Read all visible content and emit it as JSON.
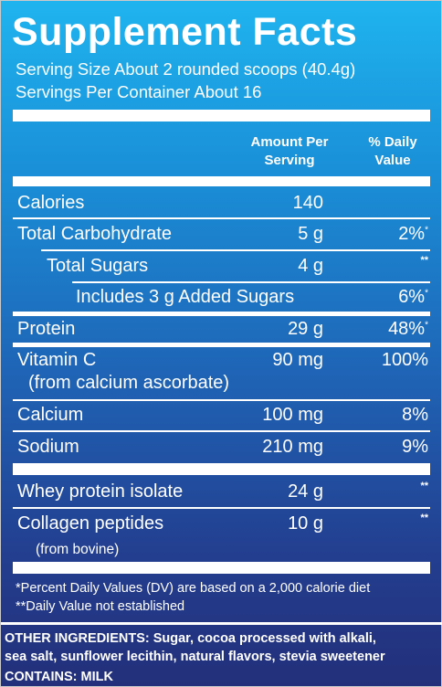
{
  "title": "Supplement Facts",
  "serving_size": "Serving Size About 2 rounded scoops (40.4g)",
  "servings_per_container": "Servings Per Container About 16",
  "header": {
    "amount_line1": "Amount Per",
    "amount_line2": "Serving",
    "dv_line1": "% Daily",
    "dv_line2": "Value"
  },
  "rows": [
    {
      "label": "Calories",
      "amount": "140",
      "dv": ""
    },
    {
      "label": "Total Carbohydrate",
      "amount": "5 g",
      "dv": "2%",
      "dv_mark": "*"
    },
    {
      "label": "Total Sugars",
      "amount": "4 g",
      "dv_mark": "**"
    },
    {
      "label": "Includes 3 g Added Sugars",
      "amount": "",
      "dv": "6%",
      "dv_mark": "*"
    },
    {
      "label": "Protein",
      "amount": "29 g",
      "dv": "48%",
      "dv_mark": "*"
    },
    {
      "label": "Vitamin C",
      "sublabel": "(from calcium ascorbate)",
      "amount": "90 mg",
      "dv": "100%"
    },
    {
      "label": "Calcium",
      "amount": "100 mg",
      "dv": "8%"
    },
    {
      "label": "Sodium",
      "amount": "210 mg",
      "dv": "9%"
    },
    {
      "label": "Whey protein isolate",
      "amount": "24 g",
      "dv_mark": "**"
    },
    {
      "label": "Collagen peptides",
      "sublabel": "(from bovine)",
      "amount": "10 g",
      "dv_mark": "**"
    }
  ],
  "footnotes": {
    "line1": "*Percent Daily Values (DV) are based on a 2,000 calorie diet",
    "line2": "**Daily Value not established"
  },
  "other_ingredients": {
    "line1": "OTHER INGREDIENTS: Sugar, cocoa processed with alkali,",
    "line2": "sea salt, sunflower lecithin, natural flavors, stevia sweetener"
  },
  "contains": "CONTAINS: MILK",
  "colors": {
    "gradient_top": "#1fb4ef",
    "gradient_bottom": "#232f7a",
    "text": "#ffffff"
  }
}
